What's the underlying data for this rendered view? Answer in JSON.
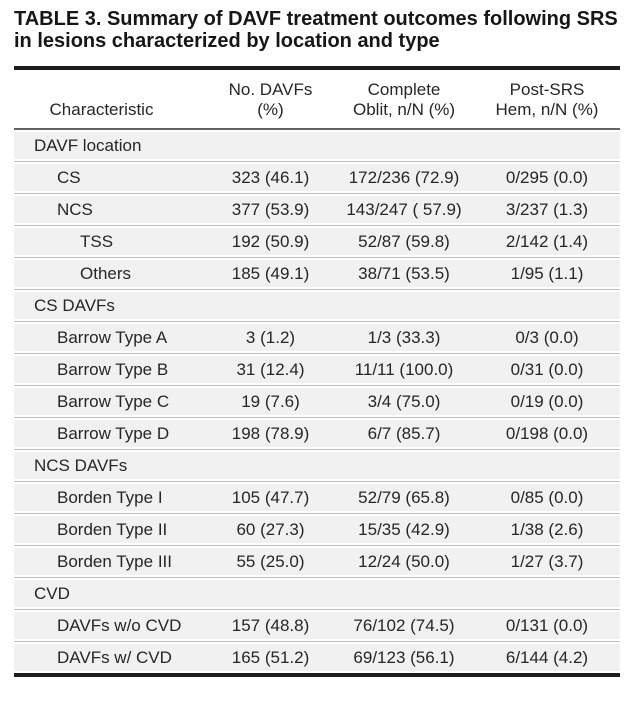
{
  "title": "TABLE 3. Summary of DAVF treatment outcomes following SRS in lesions characterized by location and type",
  "colors": {
    "row_background": "#f1f1f1",
    "row_separator": "#bdbdbd",
    "header_rule": "#646464",
    "outer_rule": "#1c1c1c",
    "text": "#262626"
  },
  "table": {
    "columns": [
      {
        "line1": "",
        "line2": "Characteristic"
      },
      {
        "line1": "No. DAVFs",
        "line2": "(%)"
      },
      {
        "line1": "Complete",
        "line2": "Oblit, n/N (%)"
      },
      {
        "line1": "Post-SRS",
        "line2": "Hem, n/N (%)"
      }
    ],
    "rows": [
      {
        "label": "DAVF location",
        "indent": 0,
        "values": [
          "",
          "",
          ""
        ]
      },
      {
        "label": "CS",
        "indent": 1,
        "values": [
          "323 (46.1)",
          "172/236 (72.9)",
          "0/295 (0.0)"
        ]
      },
      {
        "label": "NCS",
        "indent": 1,
        "values": [
          "377 (53.9)",
          "143/247 ( 57.9)",
          "3/237 (1.3)"
        ]
      },
      {
        "label": "TSS",
        "indent": 2,
        "values": [
          "192 (50.9)",
          "52/87 (59.8)",
          "2/142 (1.4)"
        ]
      },
      {
        "label": "Others",
        "indent": 2,
        "values": [
          "185 (49.1)",
          "38/71 (53.5)",
          "1/95 (1.1)"
        ]
      },
      {
        "label": "CS DAVFs",
        "indent": 0,
        "values": [
          "",
          "",
          ""
        ]
      },
      {
        "label": "Barrow Type A",
        "indent": 1,
        "values": [
          "3 (1.2)",
          "1/3 (33.3)",
          "0/3 (0.0)"
        ]
      },
      {
        "label": "Barrow Type B",
        "indent": 1,
        "values": [
          "31 (12.4)",
          "11/11 (100.0)",
          "0/31 (0.0)"
        ]
      },
      {
        "label": "Barrow Type C",
        "indent": 1,
        "values": [
          "19 (7.6)",
          "3/4 (75.0)",
          "0/19 (0.0)"
        ]
      },
      {
        "label": "Barrow Type D",
        "indent": 1,
        "values": [
          "198 (78.9)",
          "6/7 (85.7)",
          "0/198 (0.0)"
        ]
      },
      {
        "label": "NCS DAVFs",
        "indent": 0,
        "values": [
          "",
          "",
          ""
        ]
      },
      {
        "label": "Borden Type I",
        "indent": 1,
        "values": [
          "105 (47.7)",
          "52/79 (65.8)",
          "0/85 (0.0)"
        ]
      },
      {
        "label": "Borden Type II",
        "indent": 1,
        "values": [
          "60 (27.3)",
          "15/35 (42.9)",
          "1/38 (2.6)"
        ]
      },
      {
        "label": "Borden Type III",
        "indent": 1,
        "values": [
          "55 (25.0)",
          "12/24 (50.0)",
          "1/27 (3.7)"
        ]
      },
      {
        "label": "CVD",
        "indent": 0,
        "values": [
          "",
          "",
          ""
        ]
      },
      {
        "label": "DAVFs w/o CVD",
        "indent": 1,
        "values": [
          "157 (48.8)",
          "76/102 (74.5)",
          "0/131 (0.0)"
        ]
      },
      {
        "label": "DAVFs w/ CVD",
        "indent": 1,
        "values": [
          "165 (51.2)",
          "69/123 (56.1)",
          "6/144 (4.2)"
        ]
      }
    ]
  }
}
